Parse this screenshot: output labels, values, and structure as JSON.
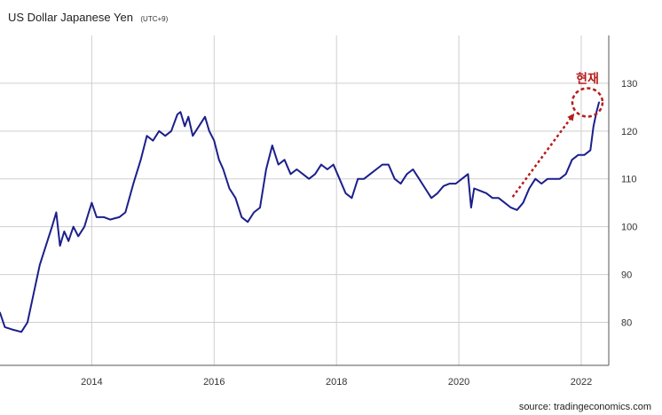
{
  "chart_data": {
    "type": "line",
    "title": "US Dollar Japanese Yen",
    "subtitle": "(UTC+9)",
    "xlabel": "",
    "ylabel": "",
    "x_ticks": [
      "2014",
      "2016",
      "2018",
      "2020",
      "2022"
    ],
    "y_ticks": [
      80,
      90,
      100,
      110,
      120,
      130
    ],
    "xlim": [
      2012.5,
      2022.45
    ],
    "ylim": [
      71,
      140
    ],
    "grid": true,
    "series": [
      {
        "color": "#1b1f8a",
        "points": [
          [
            2012.5,
            82
          ],
          [
            2012.58,
            79
          ],
          [
            2012.7,
            78.5
          ],
          [
            2012.85,
            78
          ],
          [
            2012.95,
            80
          ],
          [
            2013.05,
            86
          ],
          [
            2013.15,
            92
          ],
          [
            2013.25,
            96
          ],
          [
            2013.35,
            100
          ],
          [
            2013.42,
            103
          ],
          [
            2013.48,
            96
          ],
          [
            2013.55,
            99
          ],
          [
            2013.62,
            97
          ],
          [
            2013.7,
            100
          ],
          [
            2013.78,
            98
          ],
          [
            2013.88,
            100
          ],
          [
            2013.95,
            103
          ],
          [
            2014.0,
            105
          ],
          [
            2014.08,
            102
          ],
          [
            2014.2,
            102
          ],
          [
            2014.3,
            101.5
          ],
          [
            2014.45,
            102
          ],
          [
            2014.55,
            103
          ],
          [
            2014.68,
            109
          ],
          [
            2014.8,
            114
          ],
          [
            2014.9,
            119
          ],
          [
            2015.0,
            118
          ],
          [
            2015.1,
            120
          ],
          [
            2015.2,
            119
          ],
          [
            2015.3,
            120
          ],
          [
            2015.4,
            123.5
          ],
          [
            2015.45,
            124
          ],
          [
            2015.52,
            121
          ],
          [
            2015.58,
            123
          ],
          [
            2015.65,
            119
          ],
          [
            2015.75,
            121
          ],
          [
            2015.85,
            123
          ],
          [
            2015.92,
            120
          ],
          [
            2016.0,
            118
          ],
          [
            2016.08,
            114
          ],
          [
            2016.15,
            112
          ],
          [
            2016.25,
            108
          ],
          [
            2016.35,
            106
          ],
          [
            2016.45,
            102
          ],
          [
            2016.55,
            101
          ],
          [
            2016.65,
            103
          ],
          [
            2016.75,
            104
          ],
          [
            2016.85,
            112
          ],
          [
            2016.95,
            117
          ],
          [
            2017.05,
            113
          ],
          [
            2017.15,
            114
          ],
          [
            2017.25,
            111
          ],
          [
            2017.35,
            112
          ],
          [
            2017.45,
            111
          ],
          [
            2017.55,
            110
          ],
          [
            2017.65,
            111
          ],
          [
            2017.75,
            113
          ],
          [
            2017.85,
            112
          ],
          [
            2017.95,
            113
          ],
          [
            2018.05,
            110
          ],
          [
            2018.15,
            107
          ],
          [
            2018.25,
            106
          ],
          [
            2018.35,
            110
          ],
          [
            2018.45,
            110
          ],
          [
            2018.55,
            111
          ],
          [
            2018.65,
            112
          ],
          [
            2018.75,
            113
          ],
          [
            2018.85,
            113
          ],
          [
            2018.95,
            110
          ],
          [
            2019.05,
            109
          ],
          [
            2019.15,
            111
          ],
          [
            2019.25,
            112
          ],
          [
            2019.35,
            110
          ],
          [
            2019.45,
            108
          ],
          [
            2019.55,
            106
          ],
          [
            2019.65,
            107
          ],
          [
            2019.75,
            108.5
          ],
          [
            2019.85,
            109
          ],
          [
            2019.95,
            109
          ],
          [
            2020.05,
            110
          ],
          [
            2020.15,
            111
          ],
          [
            2020.2,
            104
          ],
          [
            2020.25,
            108
          ],
          [
            2020.35,
            107.5
          ],
          [
            2020.45,
            107
          ],
          [
            2020.55,
            106
          ],
          [
            2020.65,
            106
          ],
          [
            2020.75,
            105
          ],
          [
            2020.85,
            104
          ],
          [
            2020.95,
            103.5
          ],
          [
            2021.05,
            105
          ],
          [
            2021.15,
            108
          ],
          [
            2021.25,
            110
          ],
          [
            2021.35,
            109
          ],
          [
            2021.45,
            110
          ],
          [
            2021.55,
            110
          ],
          [
            2021.65,
            110
          ],
          [
            2021.75,
            111
          ],
          [
            2021.85,
            114
          ],
          [
            2021.95,
            115
          ],
          [
            2022.05,
            115
          ],
          [
            2022.15,
            116
          ],
          [
            2022.2,
            121
          ],
          [
            2022.25,
            124
          ],
          [
            2022.29,
            126
          ]
        ]
      }
    ],
    "annotation": {
      "text": "현재",
      "color": "#b71c1c",
      "shape": "dashed circle with dashed arrow"
    },
    "source": "source: tradingeconomics.com"
  }
}
